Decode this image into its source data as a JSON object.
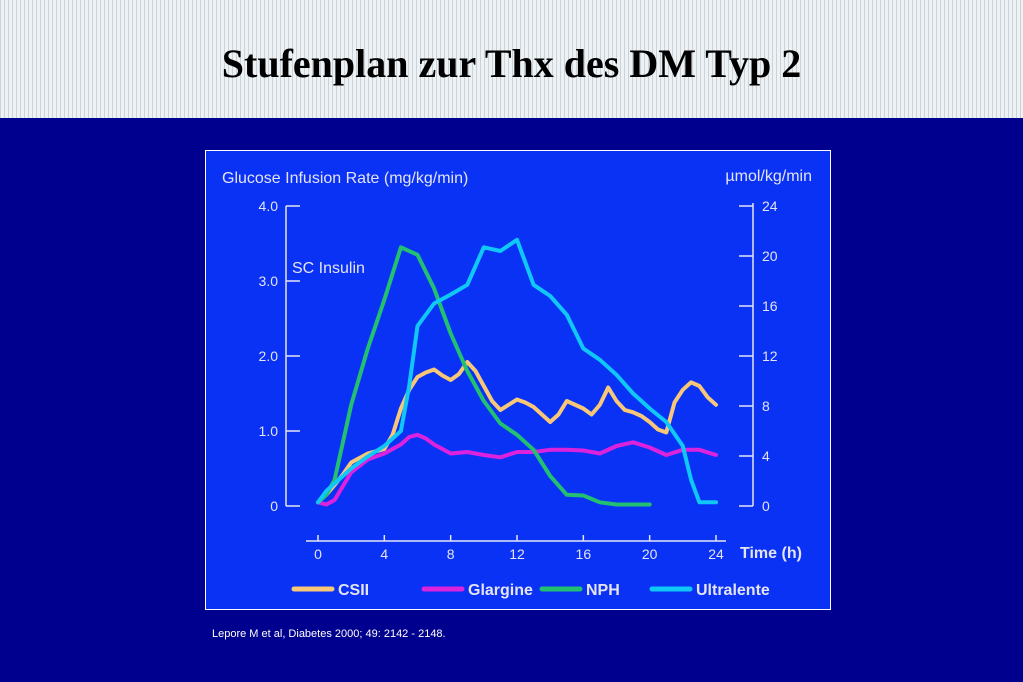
{
  "slide": {
    "title": "Stufenplan zur Thx des DM Typ 2",
    "citation": "Lepore M et al, Diabetes 2000; 49: 2142 - 2148."
  },
  "chart_data": {
    "type": "line",
    "left_axis_title": "Glucose Infusion Rate (mg/kg/min)",
    "right_axis_title": "µmol/kg/min",
    "xlabel": "Time (h)",
    "annotation": "SC Insulin",
    "xlim": [
      0,
      24
    ],
    "ylim_left": [
      0,
      4
    ],
    "ylim_right": [
      0,
      24
    ],
    "x_ticks": [
      0,
      4,
      8,
      12,
      16,
      20,
      24
    ],
    "y_ticks_left": [
      {
        "value": 0,
        "label": "0"
      },
      {
        "value": 1,
        "label": "1.0"
      },
      {
        "value": 2,
        "label": "2.0"
      },
      {
        "value": 3,
        "label": "3.0"
      },
      {
        "value": 4,
        "label": "4.0"
      }
    ],
    "y_ticks_right": [
      {
        "value": 0,
        "label": "0"
      },
      {
        "value": 4,
        "label": "4"
      },
      {
        "value": 8,
        "label": "8"
      },
      {
        "value": 12,
        "label": "12"
      },
      {
        "value": 16,
        "label": "16"
      },
      {
        "value": 20,
        "label": "20"
      },
      {
        "value": 24,
        "label": "24"
      }
    ],
    "series": [
      {
        "name": "CSII",
        "color": "#f8c878",
        "x": [
          0,
          0.5,
          1,
          1.5,
          2,
          3,
          4,
          4.5,
          5,
          5.5,
          6,
          6.5,
          7,
          7.5,
          8,
          8.5,
          9,
          9.5,
          10,
          10.5,
          11,
          12,
          12.5,
          13,
          13.5,
          14,
          14.5,
          15,
          16,
          16.5,
          17,
          17.5,
          18,
          18.5,
          19,
          19.5,
          20,
          20.5,
          21,
          21.5,
          22,
          22.5,
          23,
          23.5,
          24
        ],
        "y": [
          0.05,
          0.15,
          0.28,
          0.42,
          0.58,
          0.7,
          0.76,
          0.95,
          1.3,
          1.55,
          1.72,
          1.78,
          1.82,
          1.74,
          1.68,
          1.76,
          1.92,
          1.8,
          1.6,
          1.4,
          1.28,
          1.42,
          1.38,
          1.32,
          1.22,
          1.12,
          1.22,
          1.4,
          1.3,
          1.22,
          1.35,
          1.58,
          1.4,
          1.28,
          1.25,
          1.2,
          1.12,
          1.02,
          0.98,
          1.38,
          1.55,
          1.65,
          1.6,
          1.45,
          1.35
        ]
      },
      {
        "name": "Glargine",
        "color": "#dd22dd",
        "x": [
          0,
          0.5,
          1,
          2,
          3,
          4,
          5,
          5.5,
          6,
          6.5,
          7,
          8,
          9,
          10,
          11,
          12,
          13,
          14,
          15,
          16,
          17,
          18,
          19,
          20,
          21,
          22,
          23,
          24
        ],
        "y": [
          0.05,
          0.02,
          0.08,
          0.45,
          0.62,
          0.7,
          0.82,
          0.92,
          0.95,
          0.9,
          0.82,
          0.7,
          0.72,
          0.68,
          0.65,
          0.72,
          0.72,
          0.75,
          0.75,
          0.74,
          0.7,
          0.8,
          0.85,
          0.78,
          0.68,
          0.75,
          0.75,
          0.68
        ]
      },
      {
        "name": "NPH",
        "color": "#22c070",
        "x": [
          0,
          0.5,
          1,
          2,
          3,
          4,
          5,
          6,
          7,
          8,
          9,
          10,
          11,
          12,
          13,
          14,
          15,
          16,
          17,
          18,
          19,
          20
        ],
        "y": [
          0.05,
          0.15,
          0.35,
          1.35,
          2.1,
          2.75,
          3.45,
          3.35,
          2.9,
          2.3,
          1.8,
          1.4,
          1.1,
          0.95,
          0.75,
          0.4,
          0.15,
          0.14,
          0.05,
          0.02,
          0.02,
          0.02
        ]
      },
      {
        "name": "Ultralente",
        "color": "#10c8f8",
        "x": [
          0,
          0.5,
          1,
          2,
          3,
          4,
          5,
          5.5,
          6,
          7,
          8,
          9,
          10,
          11,
          12,
          12.5,
          13,
          14,
          15,
          16,
          17,
          18,
          19,
          20,
          21,
          22,
          22.5,
          23,
          24
        ],
        "y": [
          0.05,
          0.2,
          0.3,
          0.5,
          0.66,
          0.8,
          1.0,
          1.6,
          2.4,
          2.7,
          2.82,
          2.95,
          3.45,
          3.4,
          3.55,
          3.25,
          2.95,
          2.8,
          2.55,
          2.1,
          1.95,
          1.75,
          1.5,
          1.3,
          1.12,
          0.8,
          0.35,
          0.05,
          0.05
        ]
      }
    ],
    "legend_placement": "bottom"
  }
}
